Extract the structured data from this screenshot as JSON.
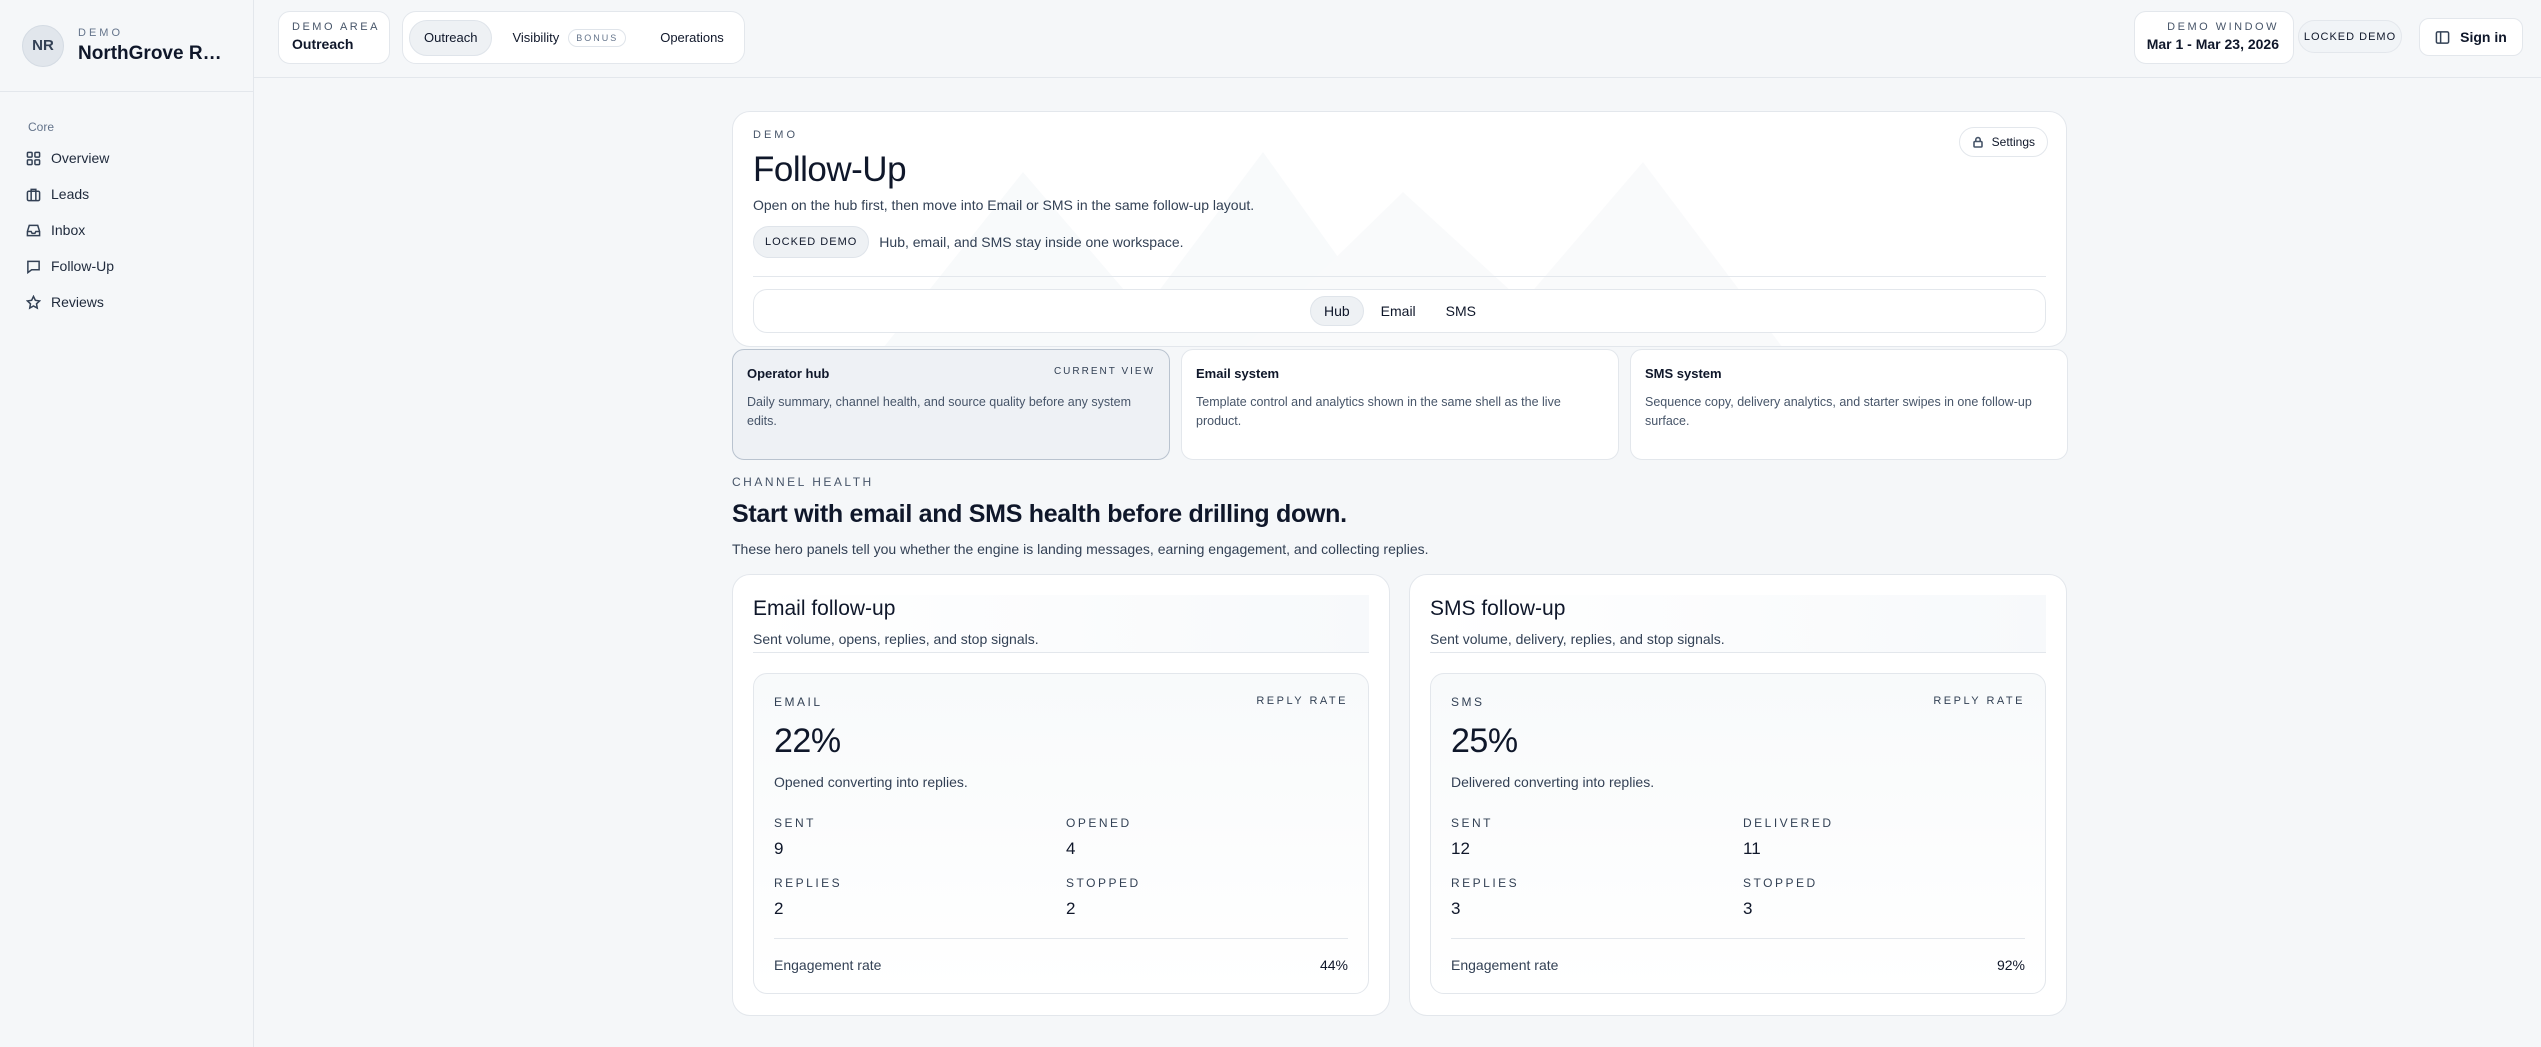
{
  "brand": {
    "initials": "NR",
    "eyebrow": "DEMO",
    "name": "NorthGrove Roof..."
  },
  "sidebar": {
    "section": "Core",
    "items": [
      {
        "label": "Overview",
        "icon": "grid-icon"
      },
      {
        "label": "Leads",
        "icon": "briefcase-icon"
      },
      {
        "label": "Inbox",
        "icon": "inbox-icon"
      },
      {
        "label": "Follow-Up",
        "icon": "message-icon"
      },
      {
        "label": "Reviews",
        "icon": "star-icon"
      }
    ]
  },
  "topbar": {
    "area_label": "DEMO AREA",
    "area_value": "Outreach",
    "tabs": [
      {
        "label": "Outreach",
        "active": true
      },
      {
        "label": "Visibility",
        "badge": "BONUS"
      },
      {
        "label": "Operations"
      }
    ],
    "window_label": "DEMO WINDOW",
    "window_value": "Mar 1 - Mar 23, 2026",
    "locked": "LOCKED DEMO",
    "signin": "Sign in"
  },
  "hero": {
    "eyebrow": "DEMO",
    "title": "Follow-Up",
    "subtitle": "Open on the hub first, then move into Email or SMS in the same follow-up layout.",
    "lock_chip": "LOCKED DEMO",
    "lock_text": "Hub, email, and SMS stay inside one workspace.",
    "settings": "Settings",
    "tabs": [
      "Hub",
      "Email",
      "SMS"
    ]
  },
  "views": [
    {
      "title": "Operator hub",
      "badge": "CURRENT VIEW",
      "desc": "Daily summary, channel health, and source quality before any system edits."
    },
    {
      "title": "Email system",
      "desc": "Template control and analytics shown in the same shell as the live product."
    },
    {
      "title": "SMS system",
      "desc": "Sequence copy, delivery analytics, and starter swipes in one follow-up surface."
    }
  ],
  "channel_health": {
    "eyebrow": "CHANNEL HEALTH",
    "title": "Start with email and SMS health before drilling down.",
    "subtitle": "These hero panels tell you whether the engine is landing messages, earning engagement, and collecting replies."
  },
  "panels": [
    {
      "title": "Email follow-up",
      "subtitle": "Sent volume, opens, replies, and stop signals.",
      "channel": "EMAIL",
      "rate_label": "REPLY RATE",
      "rate": "22%",
      "caption": "Opened converting into replies.",
      "m1_label": "SENT",
      "m1": "9",
      "m2_label": "OPENED",
      "m2": "4",
      "m3_label": "REPLIES",
      "m3": "2",
      "m4_label": "STOPPED",
      "m4": "2",
      "eng_label": "Engagement rate",
      "eng": "44%"
    },
    {
      "title": "SMS follow-up",
      "subtitle": "Sent volume, delivery, replies, and stop signals.",
      "channel": "SMS",
      "rate_label": "REPLY RATE",
      "rate": "25%",
      "caption": "Delivered converting into replies.",
      "m1_label": "SENT",
      "m1": "12",
      "m2_label": "DELIVERED",
      "m2": "11",
      "m3_label": "REPLIES",
      "m3": "3",
      "m4_label": "STOPPED",
      "m4": "3",
      "eng_label": "Engagement rate",
      "eng": "92%"
    }
  ]
}
